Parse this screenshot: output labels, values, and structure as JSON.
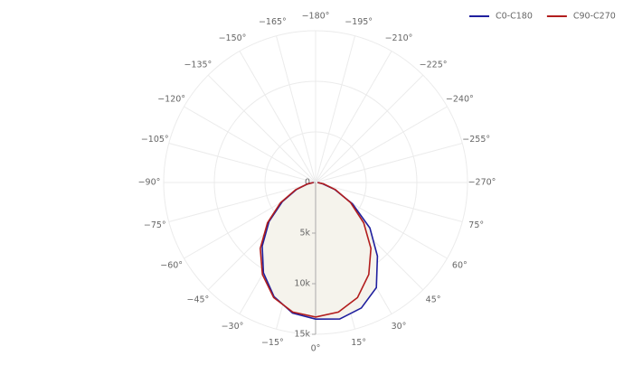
{
  "chart_data": {
    "type": "polar",
    "theta": [
      -90,
      -80,
      -70,
      -60,
      -50,
      -40,
      -30,
      -20,
      -10,
      0,
      10,
      20,
      30,
      40,
      50,
      60,
      70,
      80,
      90
    ],
    "series": [
      {
        "name": "C0-C180",
        "color": "#1f1f9e",
        "values": [
          200,
          800,
          2000,
          3800,
          6000,
          8200,
          10300,
          12000,
          13100,
          13500,
          13700,
          13200,
          12000,
          9500,
          7000,
          4200,
          2000,
          700,
          200
        ]
      },
      {
        "name": "C90-C270",
        "color": "#b21d1d",
        "values": [
          200,
          800,
          2100,
          4000,
          6200,
          8500,
          10500,
          12100,
          13000,
          13300,
          13000,
          12100,
          10500,
          8500,
          6200,
          4000,
          2100,
          800,
          200
        ]
      }
    ],
    "area_fill": "#f5f3ec",
    "rlim": [
      0,
      15000
    ],
    "rticks": [
      0,
      {
        "value": 5000,
        "label": "5k"
      },
      {
        "value": 10000,
        "label": "10k"
      },
      {
        "value": 15000,
        "label": "15k"
      }
    ],
    "thetaticks": [
      {
        "value": 0,
        "label": "0°"
      },
      {
        "value": 15,
        "label": "15°"
      },
      {
        "value": 30,
        "label": "30°"
      },
      {
        "value": 45,
        "label": "45°"
      },
      {
        "value": 60,
        "label": "60°"
      },
      {
        "value": 75,
        "label": "75°"
      },
      {
        "value": -270,
        "label": "−270°"
      },
      {
        "value": -255,
        "label": "−255°"
      },
      {
        "value": -240,
        "label": "−240°"
      },
      {
        "value": -225,
        "label": "−225°"
      },
      {
        "value": -210,
        "label": "−210°"
      },
      {
        "value": -195,
        "label": "−195°"
      },
      {
        "value": -180,
        "label": "−180°"
      },
      {
        "value": -165,
        "label": "−165°"
      },
      {
        "value": -150,
        "label": "−150°"
      },
      {
        "value": -135,
        "label": "−135°"
      },
      {
        "value": -120,
        "label": "−120°"
      },
      {
        "value": -105,
        "label": "−105°"
      },
      {
        "value": -90,
        "label": "−90°"
      },
      {
        "value": -75,
        "label": "−75°"
      },
      {
        "value": -60,
        "label": "−60°"
      },
      {
        "value": -45,
        "label": "−45°"
      },
      {
        "value": -30,
        "label": "−30°"
      },
      {
        "value": -15,
        "label": "−15°"
      }
    ],
    "legend": "top-right",
    "grid": true
  }
}
